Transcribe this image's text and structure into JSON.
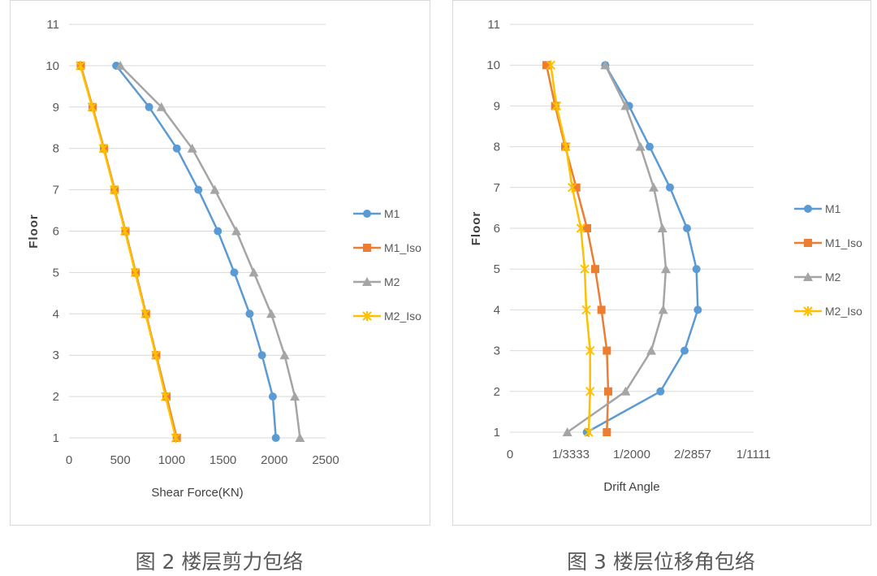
{
  "colors": {
    "M1": "#5b9bd5",
    "M1_Iso": "#ed7d31",
    "M2": "#a5a5a5",
    "M2_Iso": "#ffc000",
    "grid": "#d9d9d9",
    "text": "#595959"
  },
  "captions": {
    "left": "图 2 楼层剪力包络",
    "right": "图 3 楼层位移角包络"
  },
  "chart_data": [
    {
      "type": "line",
      "xlabel": "Shear Force(KN)",
      "ylabel": "Floor",
      "xlim": [
        0,
        2500
      ],
      "ylim": [
        1,
        11
      ],
      "x_ticks": [
        "0",
        "500",
        "1000",
        "1500",
        "2000",
        "2500"
      ],
      "y_ticks": [
        "1",
        "2",
        "3",
        "4",
        "5",
        "6",
        "7",
        "8",
        "9",
        "10",
        "11"
      ],
      "grid": true,
      "legend_position": "right",
      "series": [
        {
          "name": "M1",
          "marker": "circle",
          "color": "#5b9bd5",
          "x": [
            2015,
            1985,
            1880,
            1760,
            1610,
            1450,
            1260,
            1050,
            780,
            460
          ],
          "y": [
            1,
            2,
            3,
            4,
            5,
            6,
            7,
            8,
            9,
            10
          ]
        },
        {
          "name": "M1_Iso",
          "marker": "square",
          "color": "#ed7d31",
          "x": [
            1050,
            950,
            850,
            750,
            650,
            550,
            445,
            340,
            230,
            115
          ],
          "y": [
            1,
            2,
            3,
            4,
            5,
            6,
            7,
            8,
            9,
            10
          ]
        },
        {
          "name": "M2",
          "marker": "triangle",
          "color": "#a5a5a5",
          "x": [
            2250,
            2200,
            2100,
            1970,
            1800,
            1630,
            1420,
            1200,
            900,
            500
          ],
          "y": [
            1,
            2,
            3,
            4,
            5,
            6,
            7,
            8,
            9,
            10
          ]
        },
        {
          "name": "M2_Iso",
          "marker": "star",
          "color": "#ffc000",
          "x": [
            1040,
            940,
            845,
            745,
            645,
            545,
            440,
            335,
            225,
            110
          ],
          "y": [
            1,
            2,
            3,
            4,
            5,
            6,
            7,
            8,
            9,
            10
          ]
        }
      ]
    },
    {
      "type": "line",
      "xlabel": "Drift Angle",
      "ylabel": "Floor",
      "xlim": [
        0,
        0.0009
      ],
      "ylim": [
        1,
        11
      ],
      "x_ticks": [
        "0",
        "1/3333",
        "1/2000",
        "2/2857",
        "1/1111"
      ],
      "y_ticks": [
        "1",
        "2",
        "3",
        "4",
        "5",
        "6",
        "7",
        "8",
        "9",
        "10",
        "11"
      ],
      "grid": true,
      "legend_position": "right",
      "series": [
        {
          "name": "M1",
          "marker": "circle",
          "color": "#5b9bd5",
          "x": [
            0.000284,
            0.000556,
            0.000645,
            0.000694,
            0.000689,
            0.000654,
            0.000591,
            0.000516,
            0.00044,
            0.000352
          ],
          "y": [
            1,
            2,
            3,
            4,
            5,
            6,
            7,
            8,
            9,
            10
          ]
        },
        {
          "name": "M1_Iso",
          "marker": "square",
          "color": "#ed7d31",
          "x": [
            0.000358,
            0.000363,
            0.000358,
            0.000338,
            0.000315,
            0.000285,
            0.000245,
            0.000204,
            0.000167,
            0.000135
          ],
          "y": [
            1,
            2,
            3,
            4,
            5,
            6,
            7,
            8,
            9,
            10
          ]
        },
        {
          "name": "M2",
          "marker": "triangle",
          "color": "#a5a5a5",
          "x": [
            0.000212,
            0.000427,
            0.000522,
            0.000566,
            0.000576,
            0.000563,
            0.000531,
            0.000482,
            0.000427,
            0.000352
          ],
          "y": [
            1,
            2,
            3,
            4,
            5,
            6,
            7,
            8,
            9,
            10
          ]
        },
        {
          "name": "M2_Iso",
          "marker": "star",
          "color": "#ffc000",
          "x": [
            0.000291,
            0.000296,
            0.000296,
            0.000282,
            0.000276,
            0.000262,
            0.00023,
            0.000207,
            0.000172,
            0.000151
          ],
          "y": [
            1,
            2,
            3,
            4,
            5,
            6,
            7,
            8,
            9,
            10
          ]
        }
      ]
    }
  ]
}
